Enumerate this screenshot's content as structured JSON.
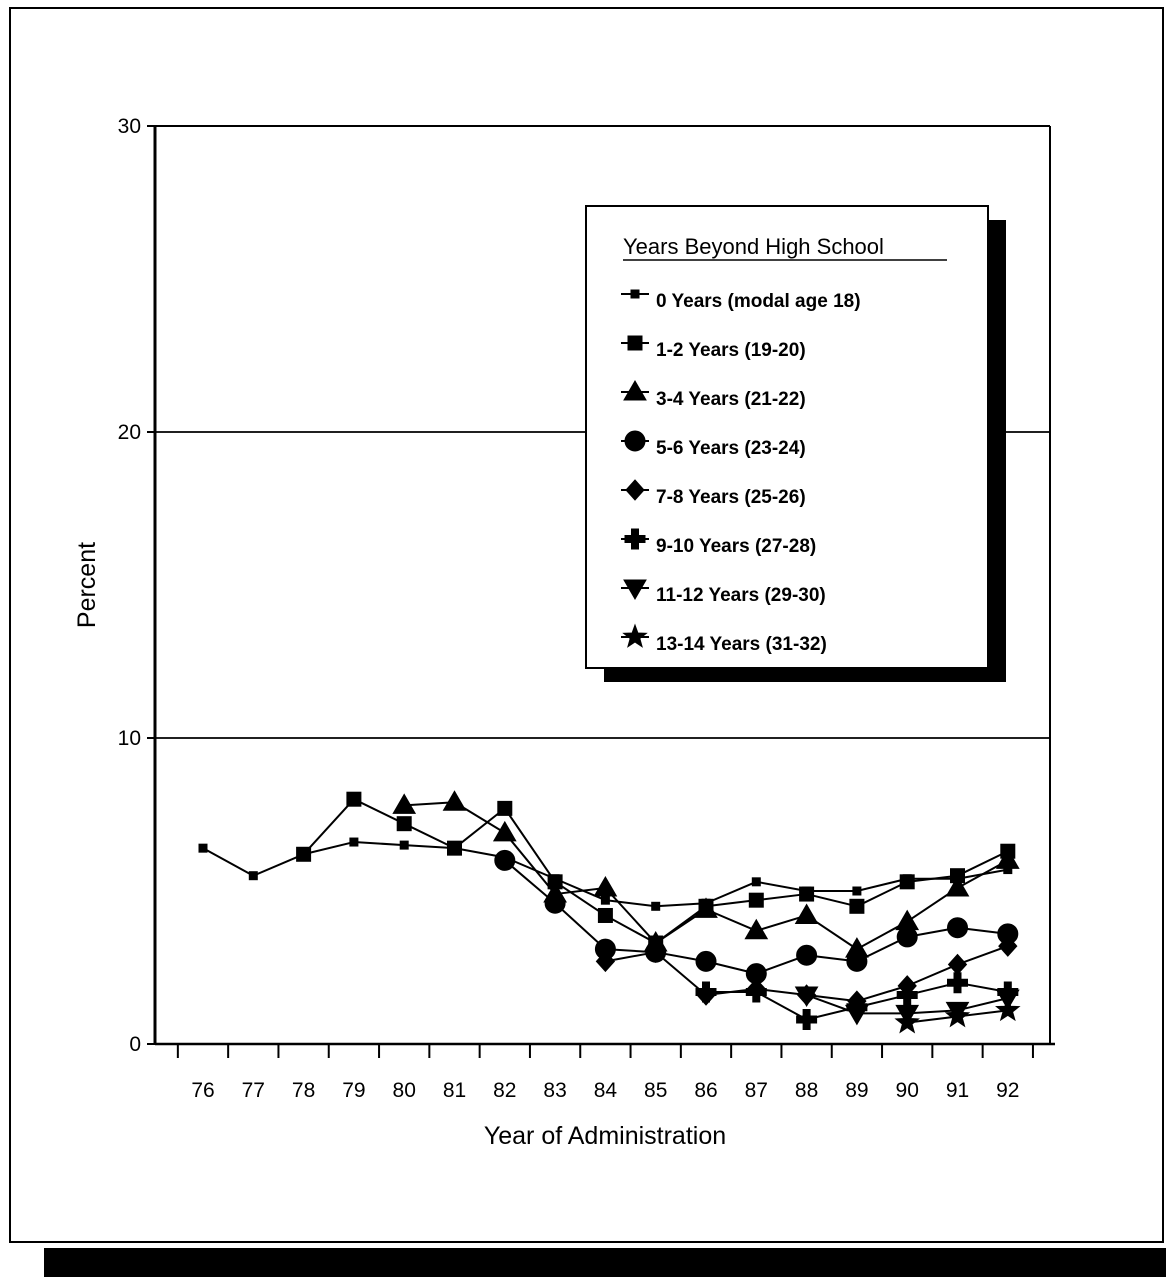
{
  "chart_data": {
    "type": "line",
    "xlabel": "Year of Administration",
    "ylabel": "Percent",
    "ylim": [
      0,
      30
    ],
    "yticks": [
      "0",
      "10",
      "20",
      "30"
    ],
    "gridlines_y": [
      10,
      20
    ],
    "categories": [
      "76",
      "77",
      "78",
      "79",
      "80",
      "81",
      "82",
      "83",
      "84",
      "85",
      "86",
      "87",
      "88",
      "89",
      "90",
      "91",
      "92"
    ],
    "legend": {
      "title": "Years Beyond High School",
      "placement": "top-right"
    },
    "series": [
      {
        "name": "0 Years (modal age 18)",
        "marker": "small-square",
        "values": [
          6.4,
          5.5,
          6.2,
          6.6,
          6.5,
          6.4,
          6.1,
          5.4,
          4.7,
          4.5,
          4.6,
          5.3,
          5.0,
          5.0,
          5.4,
          5.4,
          5.7
        ]
      },
      {
        "name": "1-2 Years (19-20)",
        "marker": "square",
        "values": [
          null,
          null,
          6.2,
          8.0,
          7.2,
          6.4,
          7.7,
          5.3,
          4.2,
          3.3,
          4.5,
          4.7,
          4.9,
          4.5,
          5.3,
          5.5,
          6.3
        ]
      },
      {
        "name": "3-4 Years (21-22)",
        "marker": "triangle",
        "values": [
          null,
          null,
          null,
          null,
          7.8,
          7.9,
          6.9,
          4.9,
          5.1,
          3.3,
          4.4,
          3.7,
          4.2,
          3.1,
          4.0,
          5.1,
          6.0
        ]
      },
      {
        "name": "5-6 Years (23-24)",
        "marker": "circle",
        "values": [
          null,
          null,
          null,
          null,
          null,
          null,
          6.0,
          4.6,
          3.1,
          3.0,
          2.7,
          2.3,
          2.9,
          2.7,
          3.5,
          3.8,
          3.6
        ]
      },
      {
        "name": "7-8 Years (25-26)",
        "marker": "diamond",
        "values": [
          null,
          null,
          null,
          null,
          null,
          null,
          null,
          null,
          2.7,
          3.0,
          1.6,
          1.8,
          1.6,
          1.4,
          1.9,
          2.6,
          3.2
        ]
      },
      {
        "name": "9-10 Years (27-28)",
        "marker": "cross",
        "values": [
          null,
          null,
          null,
          null,
          null,
          null,
          null,
          null,
          null,
          null,
          1.7,
          1.7,
          0.8,
          1.2,
          1.6,
          2.0,
          1.7
        ]
      },
      {
        "name": "11-12 Years (29-30)",
        "marker": "triangle-down",
        "values": [
          null,
          null,
          null,
          null,
          null,
          null,
          null,
          null,
          null,
          null,
          null,
          null,
          1.6,
          1.0,
          1.0,
          1.1,
          1.5
        ]
      },
      {
        "name": "13-14 Years (31-32)",
        "marker": "star",
        "values": [
          null,
          null,
          null,
          null,
          null,
          null,
          null,
          null,
          null,
          null,
          null,
          null,
          null,
          null,
          0.7,
          0.9,
          1.1
        ]
      }
    ]
  }
}
